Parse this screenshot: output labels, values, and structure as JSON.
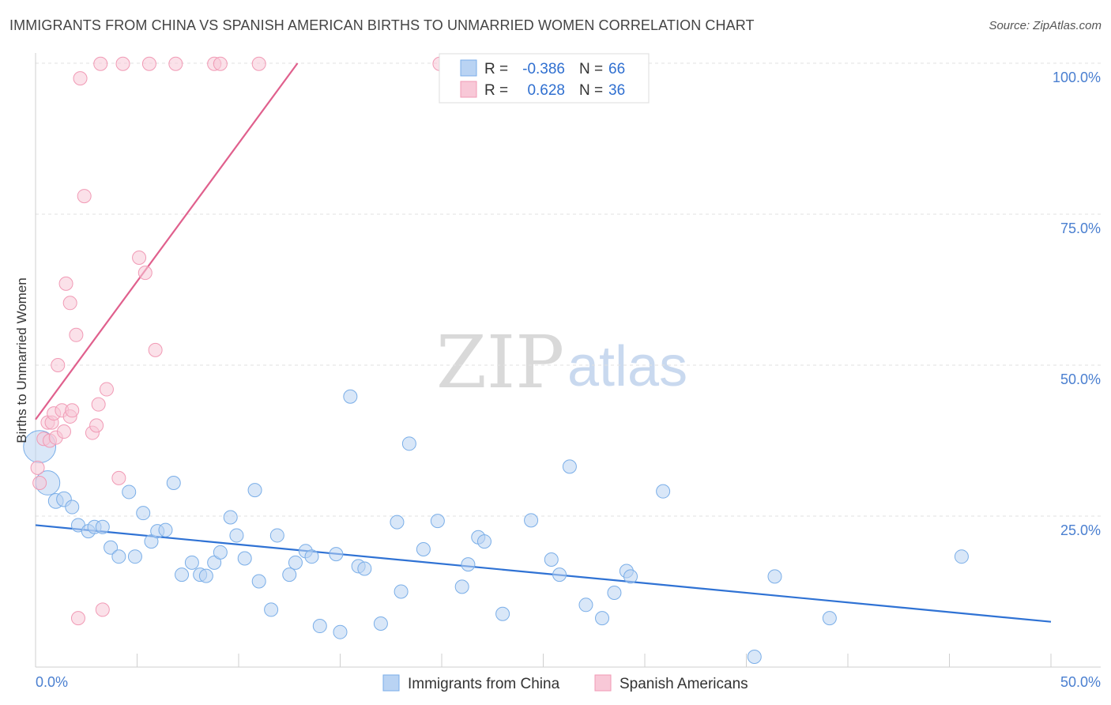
{
  "header": {
    "title": "IMMIGRANTS FROM CHINA VS SPANISH AMERICAN BIRTHS TO UNMARRIED WOMEN CORRELATION CHART",
    "source": "Source: ZipAtlas.com"
  },
  "watermark": {
    "zip": "ZIP",
    "atlas": "atlas"
  },
  "legend": {
    "r_label": "R =",
    "n_label": "N =",
    "entries": [
      {
        "r": "-0.386",
        "n": "66"
      },
      {
        "r": "0.628",
        "n": "36"
      }
    ]
  },
  "chart_data": {
    "type": "scatter",
    "title": "IMMIGRANTS FROM CHINA VS SPANISH AMERICAN BIRTHS TO UNMARRIED WOMEN CORRELATION CHART",
    "xlabel": "",
    "ylabel": "Births to Unmarried Women",
    "xlim": [
      0,
      50
    ],
    "ylim": [
      0,
      100
    ],
    "x_tick_labels": [
      "0.0%",
      "50.0%"
    ],
    "y_tick_labels": [
      "25.0%",
      "50.0%",
      "75.0%",
      "100.0%"
    ],
    "y_ticks": [
      25,
      50,
      75,
      100
    ],
    "grid": true,
    "legend_position": "top-center",
    "series": [
      {
        "name": "Immigrants from China",
        "color": "#7aaee8",
        "fill": "#b9d3f3",
        "r": -0.386,
        "n": 66,
        "trend": {
          "x": [
            0,
            50
          ],
          "y": [
            23.5,
            7.5
          ]
        },
        "points": [
          [
            0.2,
            36.5,
            2.4
          ],
          [
            0.6,
            30.5,
            1.8
          ],
          [
            1.0,
            27.5,
            1.1
          ],
          [
            1.4,
            27.8,
            1.1
          ],
          [
            1.8,
            26.5,
            1.0
          ],
          [
            2.1,
            23.5,
            1.0
          ],
          [
            2.6,
            22.5,
            1.0
          ],
          [
            2.9,
            23.2,
            1.0
          ],
          [
            3.3,
            23.2,
            1.0
          ],
          [
            3.7,
            19.8,
            1.0
          ],
          [
            4.1,
            18.3,
            1.0
          ],
          [
            4.6,
            29.0,
            1.0
          ],
          [
            4.9,
            18.3,
            1.0
          ],
          [
            5.3,
            25.5,
            1.0
          ],
          [
            5.7,
            20.8,
            1.0
          ],
          [
            6.0,
            22.5,
            1.0
          ],
          [
            6.4,
            22.7,
            1.0
          ],
          [
            6.8,
            30.5,
            1.0
          ],
          [
            7.2,
            15.3,
            1.0
          ],
          [
            7.7,
            17.3,
            1.0
          ],
          [
            8.1,
            15.3,
            1.0
          ],
          [
            8.4,
            15.1,
            1.0
          ],
          [
            8.8,
            17.3,
            1.0
          ],
          [
            9.1,
            19.0,
            1.0
          ],
          [
            9.6,
            24.8,
            1.0
          ],
          [
            9.9,
            21.8,
            1.0
          ],
          [
            10.3,
            18.0,
            1.0
          ],
          [
            10.8,
            29.3,
            1.0
          ],
          [
            11.0,
            14.2,
            1.0
          ],
          [
            11.6,
            9.5,
            1.0
          ],
          [
            11.9,
            21.8,
            1.0
          ],
          [
            12.5,
            15.3,
            1.0
          ],
          [
            12.8,
            17.3,
            1.0
          ],
          [
            13.3,
            19.2,
            1.0
          ],
          [
            13.6,
            18.3,
            1.0
          ],
          [
            14.0,
            6.8,
            1.0
          ],
          [
            14.8,
            18.7,
            1.0
          ],
          [
            15.0,
            5.8,
            1.0
          ],
          [
            15.9,
            16.7,
            1.0
          ],
          [
            16.2,
            16.3,
            1.0
          ],
          [
            15.5,
            44.8,
            1.0
          ],
          [
            17.0,
            7.2,
            1.0
          ],
          [
            17.8,
            24.0,
            1.0
          ],
          [
            18.0,
            12.5,
            1.0
          ],
          [
            18.4,
            37.0,
            1.0
          ],
          [
            19.1,
            19.5,
            1.0
          ],
          [
            19.8,
            24.2,
            1.0
          ],
          [
            21.0,
            13.3,
            1.0
          ],
          [
            21.3,
            17.0,
            1.0
          ],
          [
            21.8,
            21.5,
            1.0
          ],
          [
            22.1,
            20.8,
            1.0
          ],
          [
            23.0,
            8.8,
            1.0
          ],
          [
            24.4,
            24.3,
            1.0
          ],
          [
            25.4,
            17.8,
            1.0
          ],
          [
            25.8,
            15.3,
            1.0
          ],
          [
            26.3,
            33.2,
            1.0
          ],
          [
            27.1,
            10.3,
            1.0
          ],
          [
            27.9,
            8.1,
            1.0
          ],
          [
            28.5,
            12.3,
            1.0
          ],
          [
            29.1,
            15.9,
            1.0
          ],
          [
            29.3,
            15.0,
            1.0
          ],
          [
            30.9,
            29.1,
            1.0
          ],
          [
            35.4,
            1.7,
            1.0
          ],
          [
            36.4,
            15.0,
            1.0
          ],
          [
            39.1,
            8.1,
            1.0
          ],
          [
            45.6,
            18.3,
            1.0
          ]
        ]
      },
      {
        "name": "Spanish Americans",
        "color": "#f19ab5",
        "fill": "#f8c8d7",
        "r": 0.628,
        "n": 36,
        "trend": {
          "x": [
            0,
            12.9
          ],
          "y": [
            41.0,
            100.0
          ]
        },
        "points": [
          [
            0.1,
            33.0,
            1.0
          ],
          [
            0.2,
            30.5,
            1.0
          ],
          [
            0.4,
            37.8,
            1.0
          ],
          [
            0.6,
            40.5,
            1.0
          ],
          [
            0.7,
            37.5,
            1.0
          ],
          [
            0.8,
            40.5,
            1.0
          ],
          [
            0.9,
            42.0,
            1.0
          ],
          [
            1.0,
            38.0,
            1.0
          ],
          [
            1.1,
            50.0,
            1.0
          ],
          [
            1.3,
            42.5,
            1.0
          ],
          [
            1.4,
            39.0,
            1.0
          ],
          [
            1.5,
            63.5,
            1.0
          ],
          [
            1.7,
            60.3,
            1.0
          ],
          [
            1.7,
            41.5,
            1.0
          ],
          [
            1.8,
            42.5,
            1.0
          ],
          [
            2.0,
            55.0,
            1.0
          ],
          [
            2.1,
            8.1,
            1.0
          ],
          [
            2.2,
            97.5,
            1.0
          ],
          [
            2.4,
            78.0,
            1.0
          ],
          [
            2.8,
            38.8,
            1.0
          ],
          [
            3.0,
            40.0,
            1.0
          ],
          [
            3.1,
            43.5,
            1.0
          ],
          [
            3.2,
            99.9,
            1.0
          ],
          [
            3.3,
            9.5,
            1.0
          ],
          [
            3.5,
            46.0,
            1.0
          ],
          [
            4.1,
            31.3,
            1.0
          ],
          [
            4.3,
            99.9,
            1.0
          ],
          [
            5.1,
            67.8,
            1.0
          ],
          [
            5.4,
            65.3,
            1.0
          ],
          [
            5.6,
            99.9,
            1.0
          ],
          [
            5.9,
            52.5,
            1.0
          ],
          [
            6.9,
            99.9,
            1.0
          ],
          [
            8.8,
            99.9,
            1.0
          ],
          [
            9.1,
            99.9,
            1.0
          ],
          [
            11.0,
            99.9,
            1.0
          ],
          [
            19.9,
            99.9,
            1.0
          ]
        ]
      }
    ]
  }
}
